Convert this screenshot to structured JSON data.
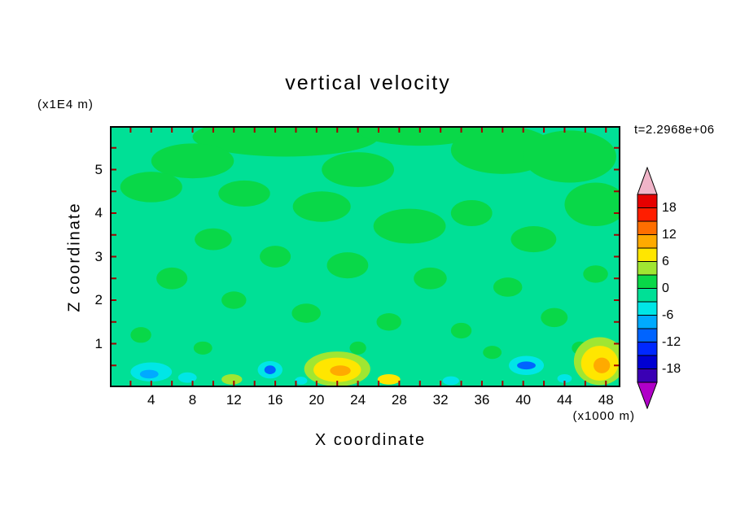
{
  "chart_data": {
    "type": "heatmap",
    "subtype": "filled-contour",
    "title": "vertical velocity",
    "xlabel": "X coordinate",
    "ylabel": "Z coordinate",
    "x_units": "(x1000 m)",
    "y_units": "(x1E4 m)",
    "time_label": "t=2.2968e+06",
    "x_range": [
      0,
      49.4
    ],
    "z_range": [
      0,
      6
    ],
    "x_ticks": [
      4,
      8,
      12,
      16,
      20,
      24,
      28,
      32,
      36,
      40,
      44,
      48
    ],
    "y_ticks": [
      5,
      4,
      3,
      2,
      1
    ],
    "x_minor_tick_step": 2,
    "y_minor_tick_step": 0.5,
    "contour_interval": 3,
    "value_range_shown": [
      -21,
      21
    ],
    "background_level": "-3..0",
    "field_summary": "Vertical velocity field is near zero (two green shades, bins -3..0 and 0..3) over most of the domain, with small strong updraft cells (yellow/orange, +6 to +15) and downdraft cells (cyan/blue, -6 to -12) confined near the lower boundary around x=4, 8, 15.5, 22, 27, 40 and 47.5",
    "palette": {
      "-12..-9": "#0064ff",
      "-9..-6": "#00aaff",
      "-6..-3": "#00e6e6",
      "-3..0": "#00e096",
      "0..3": "#09d848",
      "3..6": "#a0e632",
      "6..9": "#ffe600",
      "9..12": "#ffaa00",
      "12..15": "#ff6e00"
    },
    "features": [
      {
        "x": 17,
        "z": 5.75,
        "rx": 9,
        "rz": 0.45,
        "level": "0..3"
      },
      {
        "x": 30,
        "z": 5.9,
        "rx": 6,
        "rz": 0.35,
        "level": "0..3"
      },
      {
        "x": 38,
        "z": 5.45,
        "rx": 5,
        "rz": 0.55,
        "level": "0..3"
      },
      {
        "x": 8,
        "z": 5.2,
        "rx": 4,
        "rz": 0.4,
        "level": "0..3"
      },
      {
        "x": 24,
        "z": 5.0,
        "rx": 3.5,
        "rz": 0.4,
        "level": "0..3"
      },
      {
        "x": 44.5,
        "z": 5.3,
        "rx": 4.5,
        "rz": 0.6,
        "level": "0..3"
      },
      {
        "x": 47,
        "z": 4.2,
        "rx": 3,
        "rz": 0.5,
        "level": "0..3"
      },
      {
        "x": 4,
        "z": 4.6,
        "rx": 3,
        "rz": 0.35,
        "level": "0..3"
      },
      {
        "x": 13,
        "z": 4.45,
        "rx": 2.5,
        "rz": 0.3,
        "level": "0..3"
      },
      {
        "x": 20.5,
        "z": 4.15,
        "rx": 2.8,
        "rz": 0.35,
        "level": "0..3"
      },
      {
        "x": 29,
        "z": 3.7,
        "rx": 3.5,
        "rz": 0.4,
        "level": "0..3"
      },
      {
        "x": 35,
        "z": 4.0,
        "rx": 2,
        "rz": 0.3,
        "level": "0..3"
      },
      {
        "x": 41,
        "z": 3.4,
        "rx": 2.2,
        "rz": 0.3,
        "level": "0..3"
      },
      {
        "x": 10,
        "z": 3.4,
        "rx": 1.8,
        "rz": 0.25,
        "level": "0..3"
      },
      {
        "x": 16,
        "z": 3.0,
        "rx": 1.5,
        "rz": 0.25,
        "level": "0..3"
      },
      {
        "x": 23,
        "z": 2.8,
        "rx": 2.0,
        "rz": 0.3,
        "level": "0..3"
      },
      {
        "x": 31,
        "z": 2.5,
        "rx": 1.6,
        "rz": 0.25,
        "level": "0..3"
      },
      {
        "x": 38.5,
        "z": 2.3,
        "rx": 1.4,
        "rz": 0.22,
        "level": "0..3"
      },
      {
        "x": 6,
        "z": 2.5,
        "rx": 1.5,
        "rz": 0.25,
        "level": "0..3"
      },
      {
        "x": 12,
        "z": 2.0,
        "rx": 1.2,
        "rz": 0.2,
        "level": "0..3"
      },
      {
        "x": 19,
        "z": 1.7,
        "rx": 1.4,
        "rz": 0.22,
        "level": "0..3"
      },
      {
        "x": 27,
        "z": 1.5,
        "rx": 1.2,
        "rz": 0.2,
        "level": "0..3"
      },
      {
        "x": 34,
        "z": 1.3,
        "rx": 1.0,
        "rz": 0.18,
        "level": "0..3"
      },
      {
        "x": 43,
        "z": 1.6,
        "rx": 1.3,
        "rz": 0.22,
        "level": "0..3"
      },
      {
        "x": 47,
        "z": 2.6,
        "rx": 1.2,
        "rz": 0.2,
        "level": "0..3"
      },
      {
        "x": 3,
        "z": 1.2,
        "rx": 1.0,
        "rz": 0.18,
        "level": "0..3"
      },
      {
        "x": 9,
        "z": 0.9,
        "rx": 0.9,
        "rz": 0.15,
        "level": "0..3"
      },
      {
        "x": 24,
        "z": 0.9,
        "rx": 0.8,
        "rz": 0.15,
        "level": "0..3"
      },
      {
        "x": 37,
        "z": 0.8,
        "rx": 0.9,
        "rz": 0.15,
        "level": "0..3"
      },
      {
        "x": 45.5,
        "z": 0.9,
        "rx": 0.8,
        "rz": 0.15,
        "level": "0..3"
      },
      {
        "x": 4,
        "z": 0.35,
        "rx": 2.0,
        "rz": 0.22,
        "level": "-6..-3"
      },
      {
        "x": 3.8,
        "z": 0.3,
        "rx": 0.9,
        "rz": 0.1,
        "level": "-9..-6"
      },
      {
        "x": 7.5,
        "z": 0.22,
        "rx": 0.9,
        "rz": 0.12,
        "level": "-6..-3"
      },
      {
        "x": 11.8,
        "z": 0.18,
        "rx": 1.0,
        "rz": 0.12,
        "level": "3..6"
      },
      {
        "x": 15.5,
        "z": 0.4,
        "rx": 1.2,
        "rz": 0.2,
        "level": "-6..-3"
      },
      {
        "x": 15.5,
        "z": 0.4,
        "rx": 0.55,
        "rz": 0.1,
        "level": "-12..-9"
      },
      {
        "x": 22,
        "z": 0.42,
        "rx": 3.2,
        "rz": 0.4,
        "level": "3..6"
      },
      {
        "x": 22,
        "z": 0.4,
        "rx": 2.3,
        "rz": 0.28,
        "level": "6..9"
      },
      {
        "x": 22.3,
        "z": 0.38,
        "rx": 1.0,
        "rz": 0.12,
        "level": "9..12"
      },
      {
        "x": 27,
        "z": 0.18,
        "rx": 1.1,
        "rz": 0.12,
        "level": "6..9"
      },
      {
        "x": 33,
        "z": 0.15,
        "rx": 0.8,
        "rz": 0.1,
        "level": "-6..-3"
      },
      {
        "x": 18.5,
        "z": 0.15,
        "rx": 0.6,
        "rz": 0.09,
        "level": "-6..-3"
      },
      {
        "x": 40.3,
        "z": 0.5,
        "rx": 1.7,
        "rz": 0.22,
        "level": "-6..-3"
      },
      {
        "x": 40.3,
        "z": 0.5,
        "rx": 0.9,
        "rz": 0.09,
        "level": "-12..-9"
      },
      {
        "x": 47.4,
        "z": 0.6,
        "rx": 2.5,
        "rz": 0.55,
        "level": "3..6"
      },
      {
        "x": 47.4,
        "z": 0.55,
        "rx": 1.8,
        "rz": 0.4,
        "level": "6..9"
      },
      {
        "x": 47.6,
        "z": 0.5,
        "rx": 0.8,
        "rz": 0.18,
        "level": "9..12"
      },
      {
        "x": 44,
        "z": 0.2,
        "rx": 0.7,
        "rz": 0.1,
        "level": "-6..-3"
      }
    ],
    "axes_style": {
      "frame_color": "#000000",
      "tick_color": "#a40000"
    },
    "colorbar": {
      "position": "right",
      "labels": [
        "18",
        "12",
        "6",
        "0",
        "-6",
        "-12",
        "-18"
      ],
      "label_boundary_index_from_top": [
        1,
        3,
        5,
        7,
        9,
        11,
        13
      ],
      "segment_colors_top_to_bottom": [
        "#e60000",
        "#ff1e00",
        "#ff6e00",
        "#ffaa00",
        "#ffe600",
        "#a0e632",
        "#09d848",
        "#00e096",
        "#00e6e6",
        "#00aaff",
        "#0064ff",
        "#0028ff",
        "#0000d2",
        "#3a00b4"
      ],
      "top_arrow_color": "#f0b4c8",
      "bottom_arrow_color": "#b000c8",
      "outline_color": "#000000"
    }
  }
}
